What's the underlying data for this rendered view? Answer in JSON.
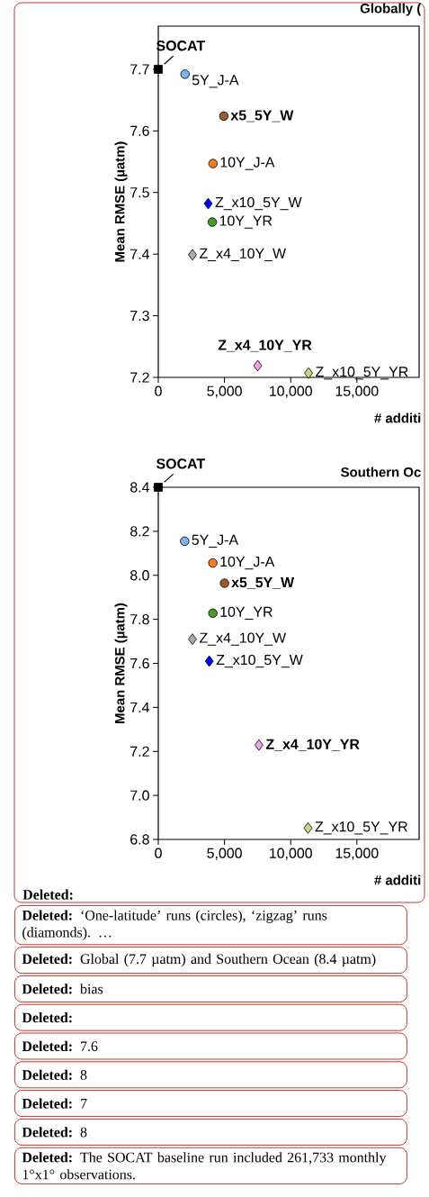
{
  "chart_data": [
    {
      "type": "scatter",
      "title": "Globally (",
      "xlabel": "# additi",
      "ylabel": "Mean RMSE (µatm)",
      "xlim": [
        0,
        19700
      ],
      "ylim": [
        7.2,
        7.77
      ],
      "xticks": [
        0,
        {
          "value": 5000,
          "label": "5,000"
        },
        {
          "value": 10000,
          "label": "10,000"
        },
        {
          "value": 15000,
          "label": "15,000"
        }
      ],
      "yticks": [
        7.2,
        7.3,
        7.4,
        7.5,
        7.6,
        7.7
      ],
      "series": [
        {
          "name": "SOCAT",
          "color": "#000000",
          "marker": "square",
          "x": [
            0
          ],
          "values": [
            7.7
          ]
        },
        {
          "name": "5Y_J-A",
          "color": "#7eb0ee",
          "marker": "circle",
          "x": [
            2020
          ],
          "values": [
            7.692
          ]
        },
        {
          "name": "10Y_J-A",
          "color": "#f47b20",
          "marker": "circle",
          "x": [
            4130
          ],
          "values": [
            7.547
          ]
        },
        {
          "name": "x5_5Y_W",
          "color": "#9c5a2e",
          "marker": "circle",
          "x": [
            4950
          ],
          "values": [
            7.624
          ]
        },
        {
          "name": "10Y_YR",
          "color": "#4a9a2a",
          "marker": "circle",
          "x": [
            4080
          ],
          "values": [
            7.452
          ]
        },
        {
          "name": "Z_x4_10Y_W",
          "color": "#aaaaaa",
          "marker": "diamond",
          "x": [
            2580
          ],
          "values": [
            7.399
          ]
        },
        {
          "name": "Z_x10_5Y_W",
          "color": "#0000ff",
          "marker": "diamond",
          "x": [
            3770
          ],
          "values": [
            7.482
          ]
        },
        {
          "name": "Z_x4_10Y_YR",
          "color": "#f5a0e0",
          "marker": "diamond",
          "x": [
            7510
          ],
          "values": [
            7.219
          ]
        },
        {
          "name": "Z_x10_5Y_YR",
          "color": "#c8d88a",
          "marker": "diamond",
          "x": [
            11350
          ],
          "values": [
            7.207
          ]
        }
      ]
    },
    {
      "type": "scatter",
      "title": "Southern Oc",
      "xlabel": "# additi",
      "ylabel": "Mean RMSE (µatm)",
      "xlim": [
        0,
        19700
      ],
      "ylim": [
        6.8,
        8.4
      ],
      "xticks": [
        0,
        {
          "value": 5000,
          "label": "5,000"
        },
        {
          "value": 10000,
          "label": "10,000"
        },
        {
          "value": 15000,
          "label": "15,000"
        }
      ],
      "yticks": [
        6.8,
        {
          "value": 7,
          "label": "7.0"
        },
        7.2,
        7.4,
        7.6,
        7.8,
        {
          "value": 8,
          "label": "8.0"
        },
        8.2,
        8.4
      ],
      "series": [
        {
          "name": "SOCAT",
          "color": "#000000",
          "marker": "square",
          "x": [
            0
          ],
          "values": [
            8.4
          ]
        },
        {
          "name": "5Y_J-A",
          "color": "#7eb0ee",
          "marker": "circle",
          "x": [
            1990
          ],
          "values": [
            8.155
          ]
        },
        {
          "name": "10Y_J-A",
          "color": "#f47b20",
          "marker": "circle",
          "x": [
            4120
          ],
          "values": [
            8.056
          ]
        },
        {
          "name": "x5_5Y_W",
          "color": "#9c5a2e",
          "marker": "circle",
          "x": [
            5000
          ],
          "values": [
            7.964
          ]
        },
        {
          "name": "10Y_YR",
          "color": "#4a9a2a",
          "marker": "circle",
          "x": [
            4120
          ],
          "values": [
            7.828
          ]
        },
        {
          "name": "Z_x4_10Y_W",
          "color": "#aaaaaa",
          "marker": "diamond",
          "x": [
            2580
          ],
          "values": [
            7.71
          ]
        },
        {
          "name": "Z_x10_5Y_W",
          "color": "#0000ff",
          "marker": "diamond",
          "x": [
            3850
          ],
          "values": [
            7.61
          ]
        },
        {
          "name": "Z_x4_10Y_YR",
          "color": "#f5a0e0",
          "marker": "diamond",
          "x": [
            7600
          ],
          "values": [
            7.229
          ]
        },
        {
          "name": "Z_x10_5Y_YR",
          "color": "#c8d88a",
          "marker": "diamond",
          "x": [
            11310
          ],
          "values": [
            6.852
          ]
        }
      ]
    },
    {
      "type": "other",
      "annotations": [
        "**Deleted:**",
        "**Deleted:** ‘One-latitude’ runs (circles), ‘zigzag’ runs (diamonds). …",
        "**Deleted:** Global (7.7 µatm) and Southern Ocean (8.4 µatm)",
        "**Deleted:** bias",
        "**Deleted:**",
        "**Deleted:** 7.6",
        "**Deleted:** 8",
        "**Deleted:** 7",
        "**Deleted:** 8",
        "**Deleted:** The SOCAT baseline run included 261,733 monthly 1°x1° observations."
      ]
    }
  ]
}
